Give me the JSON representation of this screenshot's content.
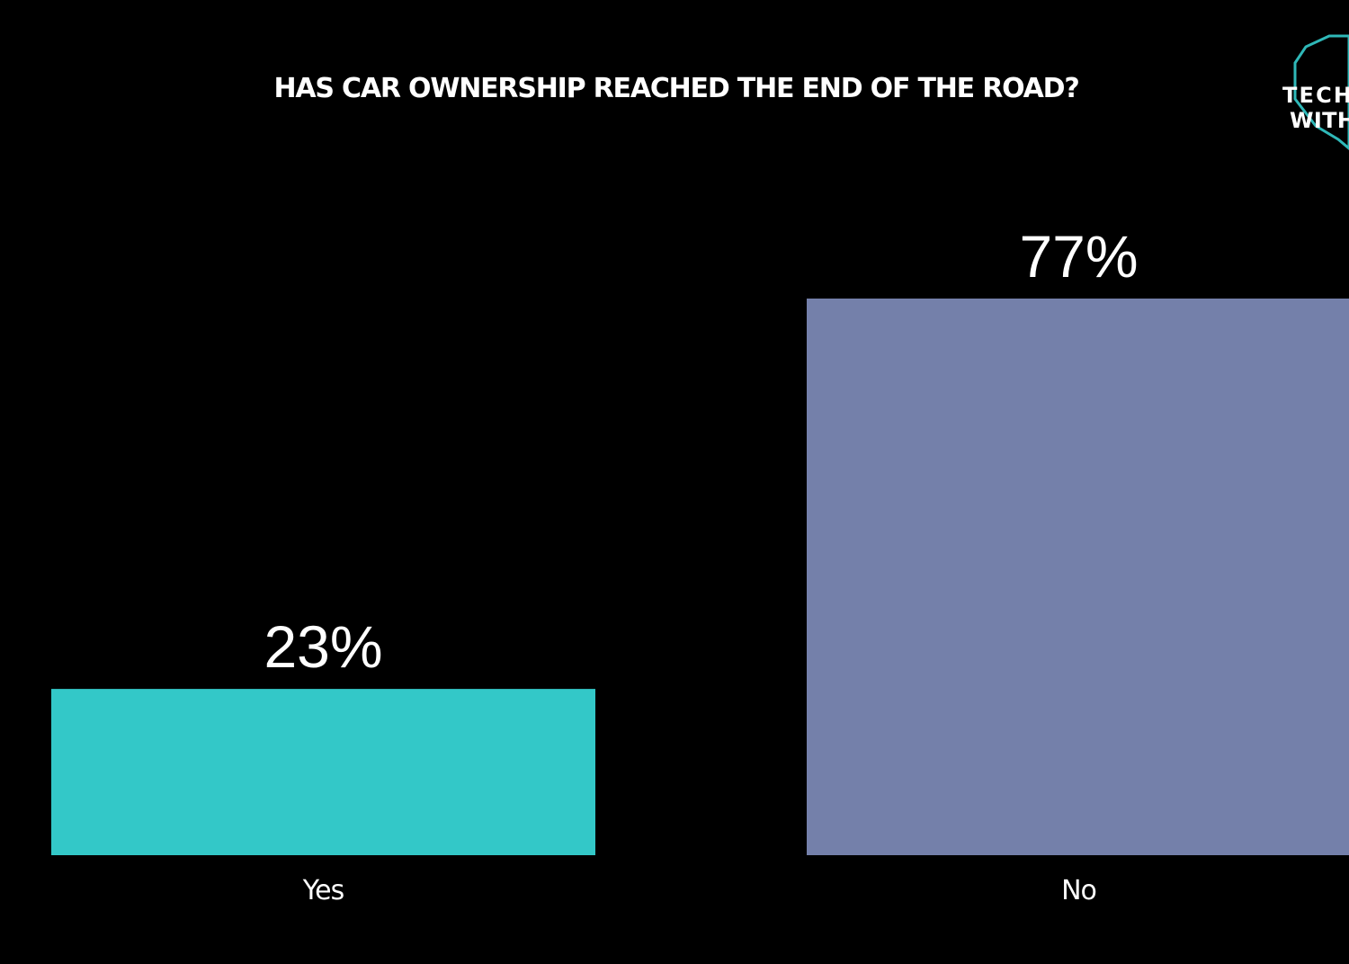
{
  "chart_data": {
    "type": "bar",
    "title": "HAS CAR OWNERSHIP REACHED THE END OF THE ROAD?",
    "categories": [
      "Yes",
      "No"
    ],
    "values": [
      23,
      77
    ],
    "value_labels": [
      "23%",
      "77%"
    ],
    "unit": "%",
    "ylim": [
      0,
      100
    ],
    "xlabel": "",
    "ylabel": "",
    "grid": false,
    "legend": "none",
    "colors": [
      "#33c8c8",
      "#7480aa"
    ]
  },
  "logo": {
    "line1": "TECH",
    "line2": "WITH",
    "color": "#2fb8b8"
  },
  "colors": {
    "background": "#000000",
    "text": "#ffffff"
  }
}
